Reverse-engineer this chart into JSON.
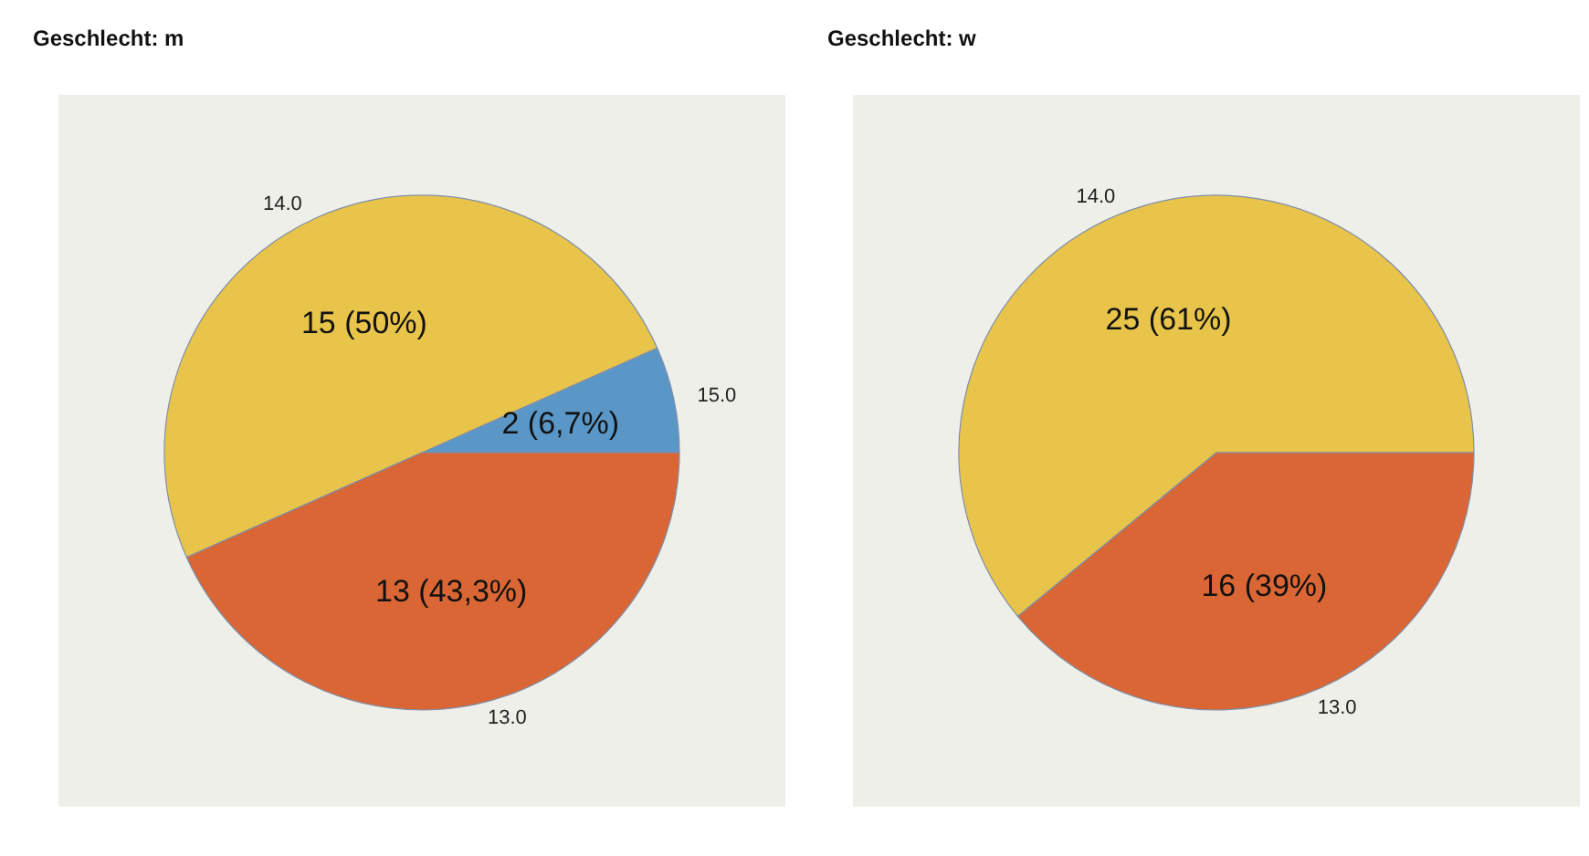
{
  "chart_data": [
    {
      "type": "pie",
      "title": "Geschlecht: m",
      "categories": [
        "15.0",
        "14.0",
        "13.0"
      ],
      "values": [
        2,
        15,
        13
      ],
      "colors": [
        "#5b97c6",
        "#e8c44b",
        "#d96634"
      ],
      "value_labels": [
        "2 (6,7%)",
        "15 (50%)",
        "13 (43,3%)"
      ]
    },
    {
      "type": "pie",
      "title": "Geschlecht: w",
      "categories": [
        "14.0",
        "13.0"
      ],
      "values": [
        25,
        16
      ],
      "colors": [
        "#e8c44b",
        "#d96634"
      ],
      "value_labels": [
        "25 (61%)",
        "16 (39%)"
      ]
    }
  ]
}
